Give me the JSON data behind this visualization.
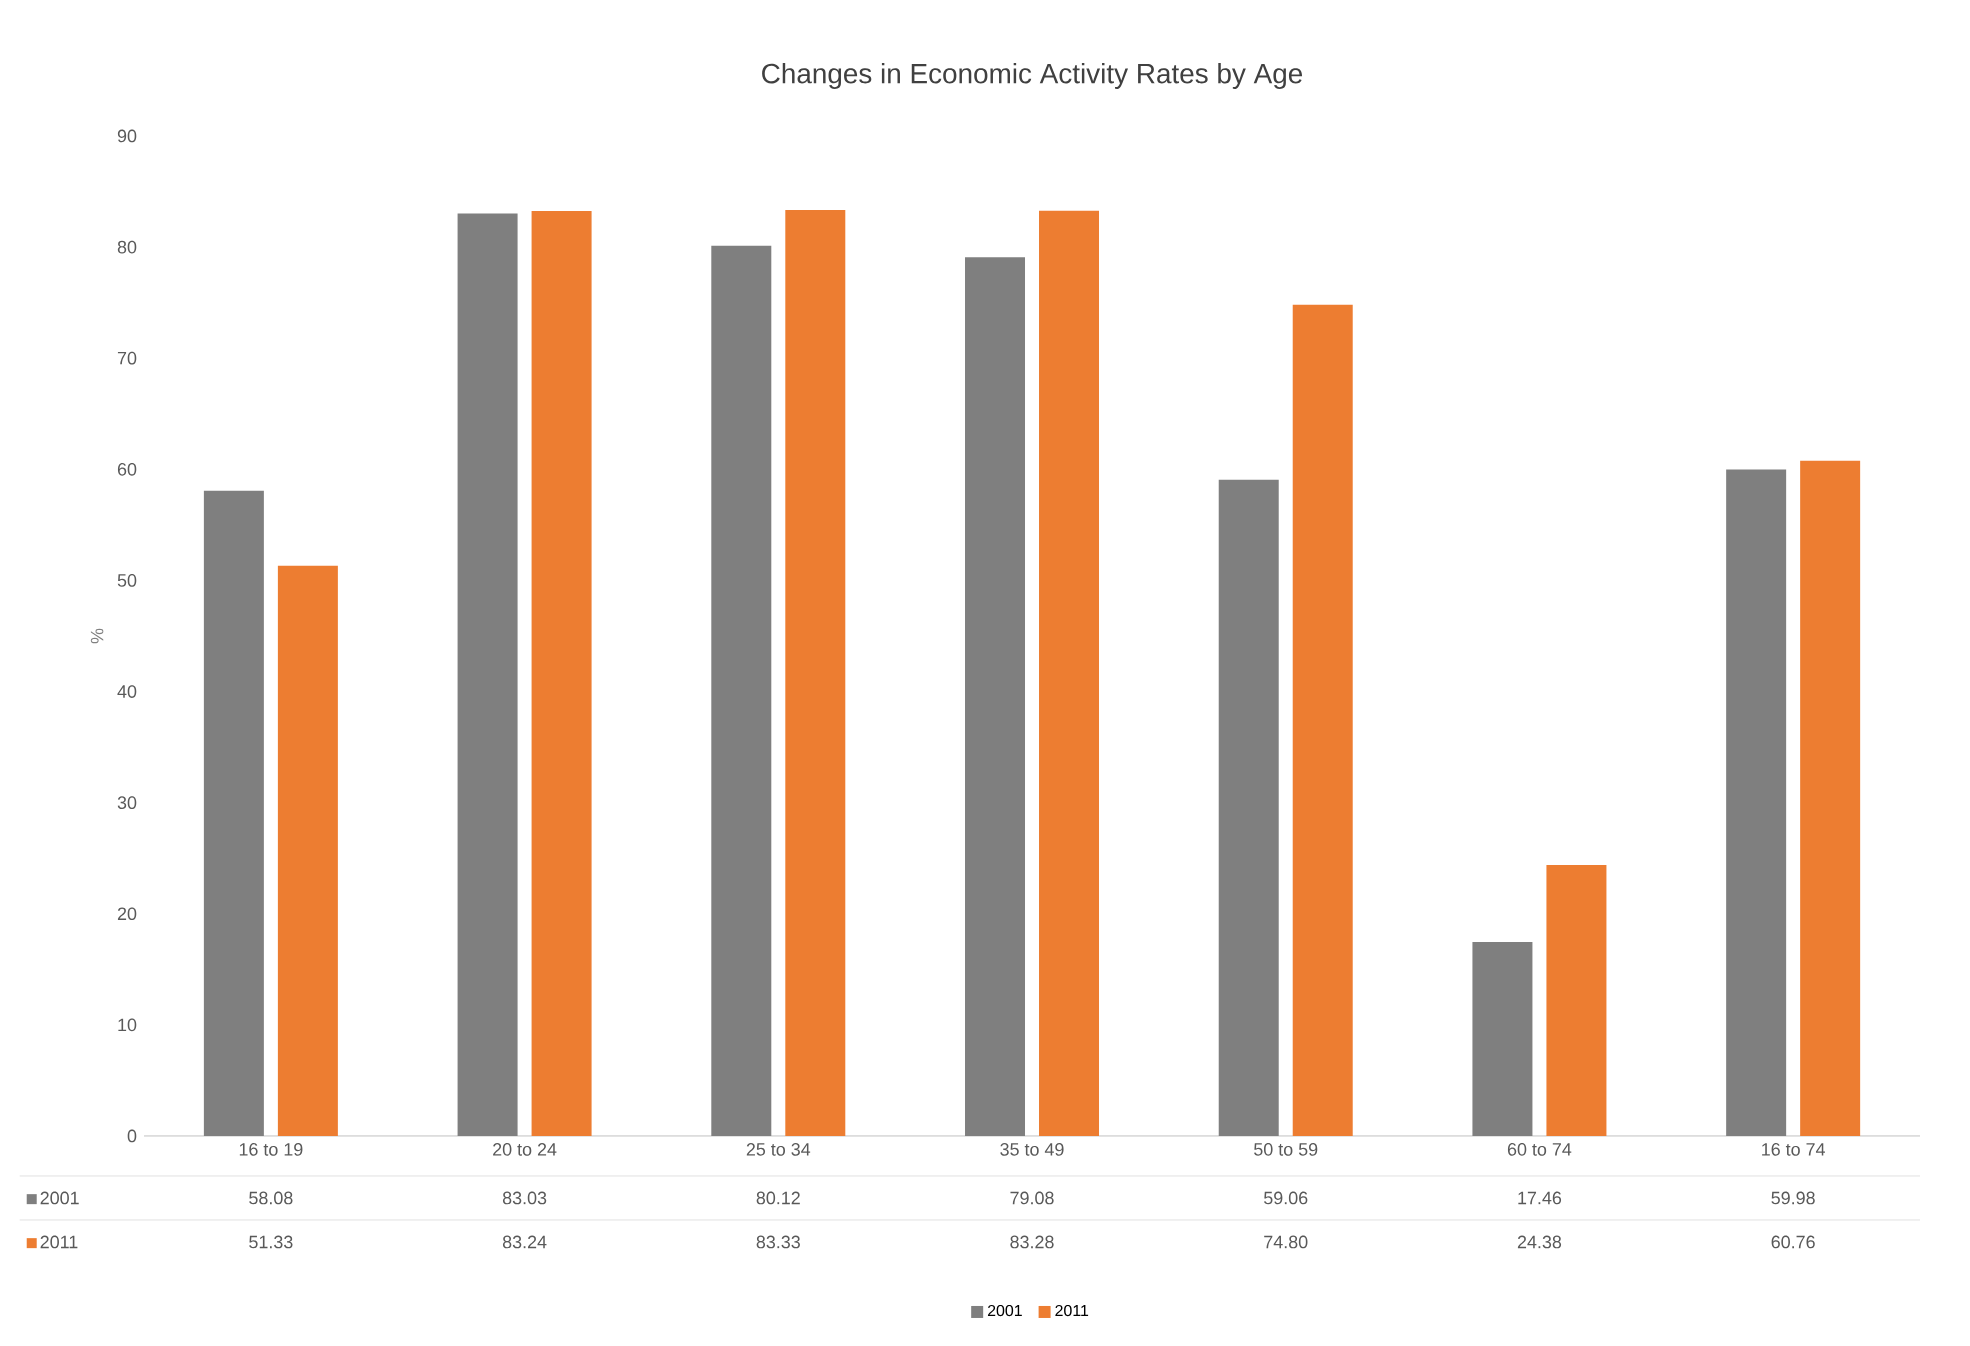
{
  "chart_data": {
    "type": "bar",
    "title": "Changes in Economic Activity Rates by Age",
    "ylabel": "%",
    "categories": [
      "16 to 19",
      "20 to 24",
      "25 to 34",
      "35 to 49",
      "50 to 59",
      "60 to 74",
      "16 to 74"
    ],
    "series": [
      {
        "name": "2001",
        "color": "#7f7f7f",
        "values": [
          58.08,
          83.03,
          80.12,
          79.08,
          59.06,
          17.46,
          59.98
        ],
        "value_labels": [
          "58.08",
          "83.03",
          "80.12",
          "79.08",
          "59.06",
          "17.46",
          "59.98"
        ]
      },
      {
        "name": "2011",
        "color": "#ed7d31",
        "values": [
          51.33,
          83.24,
          83.33,
          83.28,
          74.8,
          24.38,
          60.76
        ],
        "value_labels": [
          "51.33",
          "83.24",
          "83.33",
          "83.28",
          "74.80",
          "24.38",
          "60.76"
        ]
      }
    ],
    "ylim": [
      0,
      90
    ],
    "yticks": [
      0,
      10,
      20,
      30,
      40,
      50,
      60,
      70,
      80,
      90
    ],
    "grid": false,
    "legend": "bottom"
  }
}
